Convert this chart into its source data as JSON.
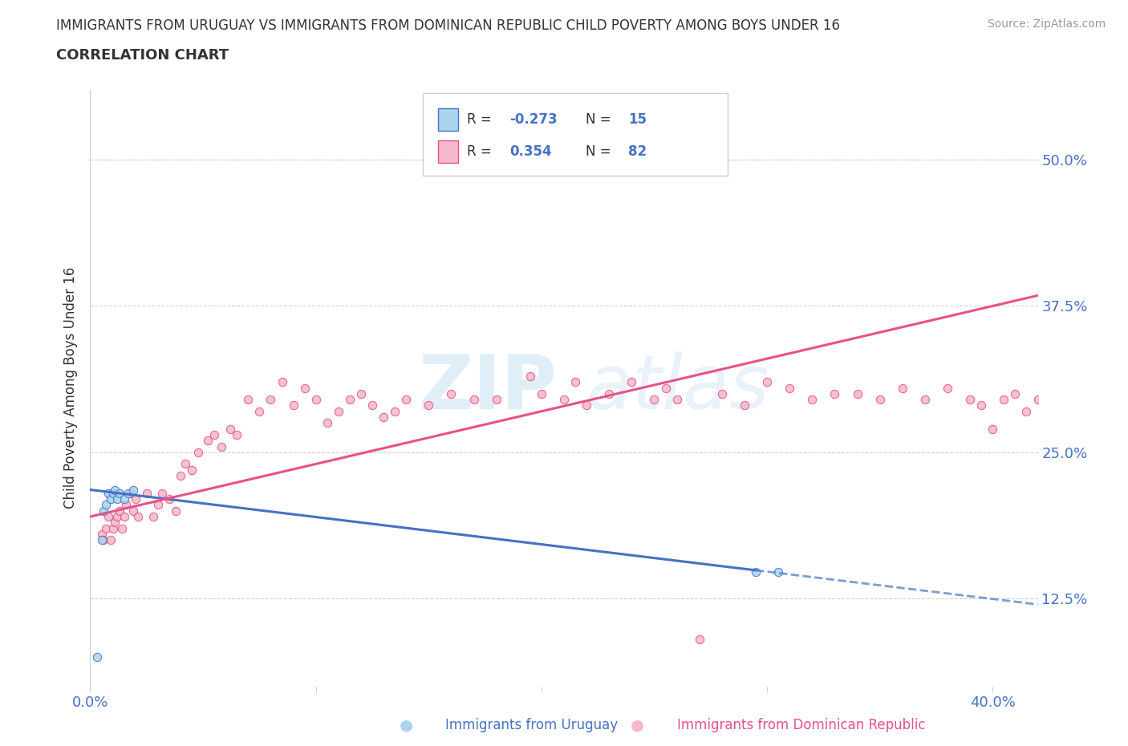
{
  "title": "IMMIGRANTS FROM URUGUAY VS IMMIGRANTS FROM DOMINICAN REPUBLIC CHILD POVERTY AMONG BOYS UNDER 16",
  "subtitle": "CORRELATION CHART",
  "source": "Source: ZipAtlas.com",
  "ylabel": "Child Poverty Among Boys Under 16",
  "xlim": [
    0.0,
    0.42
  ],
  "ylim": [
    0.05,
    0.56
  ],
  "ytick_vals": [
    0.125,
    0.25,
    0.375,
    0.5
  ],
  "ytick_labels": [
    "12.5%",
    "25.0%",
    "37.5%",
    "50.0%"
  ],
  "xtick_vals": [
    0.0,
    0.1,
    0.2,
    0.3,
    0.4
  ],
  "xtick_labels": [
    "0.0%",
    "",
    "",
    "",
    "40.0%"
  ],
  "uruguay_color": "#aad4f0",
  "dominican_color": "#f5b8c8",
  "trend_uruguay_color": "#4472C4",
  "trend_dominican_color": "#E8508A",
  "legend_R_uruguay": "-0.273",
  "legend_N_uruguay": "15",
  "legend_R_dominican": "0.354",
  "legend_N_dominican": "82",
  "uruguay_x": [
    0.003,
    0.005,
    0.006,
    0.007,
    0.008,
    0.009,
    0.01,
    0.011,
    0.012,
    0.013,
    0.015,
    0.017,
    0.019,
    0.295,
    0.305
  ],
  "uruguay_y": [
    0.075,
    0.175,
    0.2,
    0.205,
    0.215,
    0.21,
    0.215,
    0.218,
    0.21,
    0.215,
    0.21,
    0.215,
    0.218,
    0.148,
    0.148
  ],
  "dominican_x": [
    0.005,
    0.006,
    0.007,
    0.008,
    0.009,
    0.01,
    0.011,
    0.012,
    0.013,
    0.014,
    0.015,
    0.016,
    0.018,
    0.019,
    0.02,
    0.021,
    0.025,
    0.028,
    0.03,
    0.032,
    0.035,
    0.038,
    0.04,
    0.042,
    0.045,
    0.048,
    0.052,
    0.055,
    0.058,
    0.062,
    0.065,
    0.07,
    0.075,
    0.08,
    0.085,
    0.09,
    0.095,
    0.1,
    0.105,
    0.11,
    0.115,
    0.12,
    0.125,
    0.13,
    0.135,
    0.14,
    0.15,
    0.16,
    0.17,
    0.18,
    0.195,
    0.2,
    0.21,
    0.215,
    0.22,
    0.23,
    0.24,
    0.25,
    0.255,
    0.26,
    0.27,
    0.28,
    0.29,
    0.3,
    0.31,
    0.32,
    0.33,
    0.34,
    0.35,
    0.36,
    0.37,
    0.38,
    0.39,
    0.395,
    0.4,
    0.405,
    0.41,
    0.415,
    0.42,
    0.425,
    0.43,
    0.435
  ],
  "dominican_y": [
    0.18,
    0.175,
    0.185,
    0.195,
    0.175,
    0.185,
    0.19,
    0.195,
    0.2,
    0.185,
    0.195,
    0.205,
    0.215,
    0.2,
    0.21,
    0.195,
    0.215,
    0.195,
    0.205,
    0.215,
    0.21,
    0.2,
    0.23,
    0.24,
    0.235,
    0.25,
    0.26,
    0.265,
    0.255,
    0.27,
    0.265,
    0.295,
    0.285,
    0.295,
    0.31,
    0.29,
    0.305,
    0.295,
    0.275,
    0.285,
    0.295,
    0.3,
    0.29,
    0.28,
    0.285,
    0.295,
    0.29,
    0.3,
    0.295,
    0.295,
    0.315,
    0.3,
    0.295,
    0.31,
    0.29,
    0.3,
    0.31,
    0.295,
    0.305,
    0.295,
    0.09,
    0.3,
    0.29,
    0.31,
    0.305,
    0.295,
    0.3,
    0.3,
    0.295,
    0.305,
    0.295,
    0.305,
    0.295,
    0.29,
    0.27,
    0.295,
    0.3,
    0.285,
    0.295,
    0.305,
    0.285,
    0.295
  ],
  "watermark_zip": "ZIP",
  "watermark_atlas": "atlas",
  "tick_color": "#4472C4",
  "label_color": "#333333"
}
